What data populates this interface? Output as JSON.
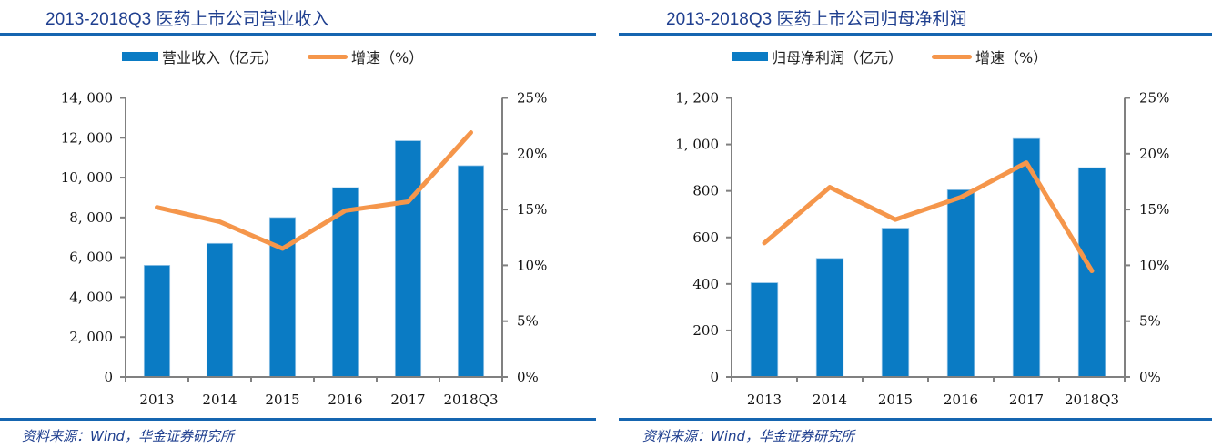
{
  "colors": {
    "title": "#1f3f8f",
    "rule": "#1565b0",
    "bar": "#0a7bc4",
    "line": "#f5964b",
    "axis": "#808080"
  },
  "charts": [
    {
      "title": "2013-2018Q3 医药上市公司营业收入",
      "legend": {
        "bar": "营业收入（亿元）",
        "line": "增速（%）"
      },
      "source": "资料来源：Wind，华金证券研究所",
      "left_ticks": [
        "0",
        "2, 000",
        "4, 000",
        "6, 000",
        "8, 000",
        "10, 000",
        "12, 000",
        "14, 000"
      ],
      "right_ticks": [
        "0%",
        "5%",
        "10%",
        "15%",
        "20%",
        "25%"
      ]
    },
    {
      "title": "2013-2018Q3 医药上市公司归母净利润",
      "legend": {
        "bar": "归母净利润（亿元）",
        "line": "增速（%）"
      },
      "source": "资料来源：Wind，华金证券研究所",
      "left_ticks": [
        "0",
        "200",
        "400",
        "600",
        "800",
        "1, 000",
        "1, 200"
      ],
      "right_ticks": [
        "0%",
        "5%",
        "10%",
        "15%",
        "20%",
        "25%"
      ]
    }
  ],
  "chart_data": [
    {
      "type": "bar+line",
      "title": "2013-2018Q3 医药上市公司营业收入",
      "categories": [
        "2013",
        "2014",
        "2015",
        "2016",
        "2017",
        "2018Q3"
      ],
      "series": [
        {
          "name": "营业收入（亿元）",
          "type": "bar",
          "axis": "left",
          "values": [
            5600,
            6700,
            8000,
            9500,
            11850,
            10600
          ]
        },
        {
          "name": "增速（%）",
          "type": "line",
          "axis": "right",
          "values": [
            15.2,
            13.9,
            11.5,
            14.9,
            15.7,
            21.9
          ]
        }
      ],
      "ylim_left": [
        0,
        14000
      ],
      "ylim_right": [
        0,
        25
      ],
      "left_tick_step": 2000,
      "right_tick_step": 5,
      "legend_position": "top",
      "grid": false
    },
    {
      "type": "bar+line",
      "title": "2013-2018Q3 医药上市公司归母净利润",
      "categories": [
        "2013",
        "2014",
        "2015",
        "2016",
        "2017",
        "2018Q3"
      ],
      "series": [
        {
          "name": "归母净利润（亿元）",
          "type": "bar",
          "axis": "left",
          "values": [
            405,
            510,
            640,
            805,
            1025,
            900
          ]
        },
        {
          "name": "增速（%）",
          "type": "line",
          "axis": "right",
          "values": [
            12.0,
            17.0,
            14.1,
            16.1,
            19.2,
            9.5
          ]
        }
      ],
      "ylim_left": [
        0,
        1200
      ],
      "ylim_right": [
        0,
        25
      ],
      "left_tick_step": 200,
      "right_tick_step": 5,
      "legend_position": "top",
      "grid": false
    }
  ]
}
